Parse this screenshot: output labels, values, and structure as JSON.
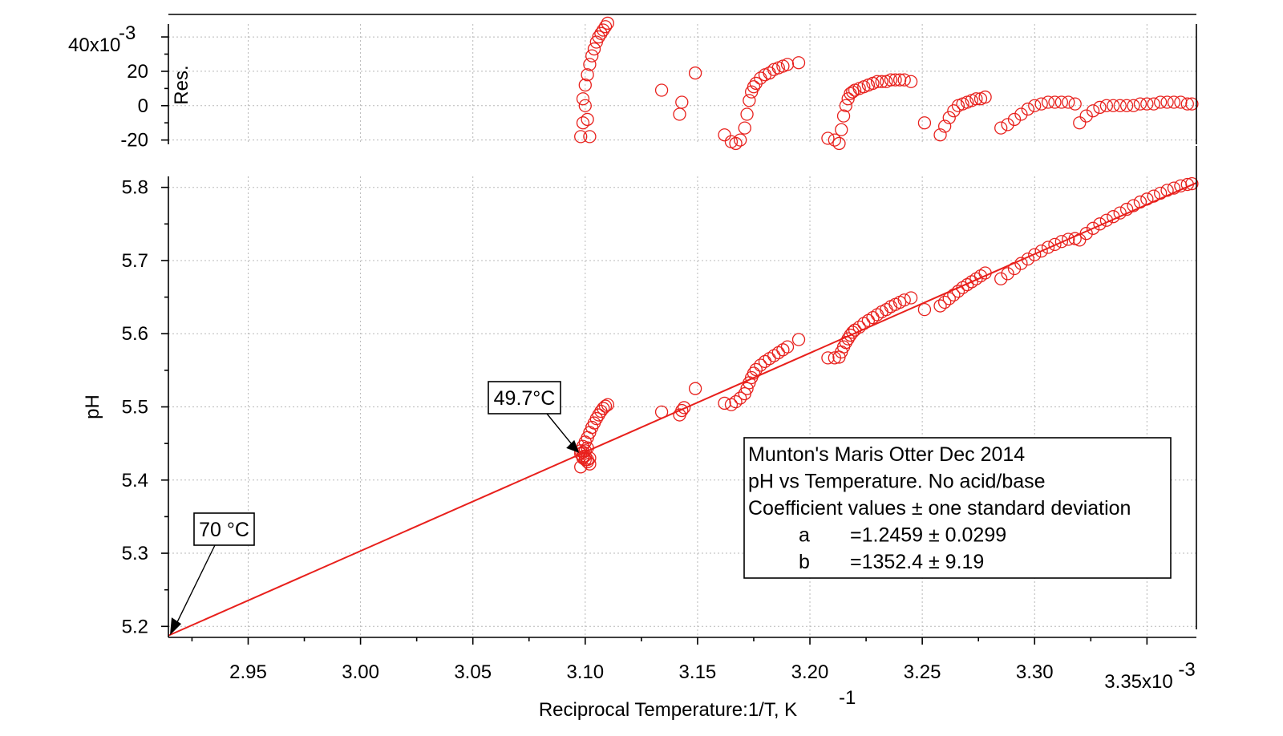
{
  "chart_data": {
    "type": "scatter",
    "xlabel": "Reciprocal Temperature:1/T,  K",
    "xlabel_sup": "-1",
    "x_exponent_label": "3.35x10",
    "x_exponent_sup": "-3",
    "xlim": [
      0.0029145,
      0.003372
    ],
    "x_ticks": [
      0.00295,
      0.003,
      0.00305,
      0.0031,
      0.00315,
      0.0032,
      0.00325,
      0.0033,
      0.00335
    ],
    "x_tick_labels": [
      "2.95",
      "3.00",
      "3.05",
      "3.10",
      "3.15",
      "3.20",
      "3.25",
      "3.30",
      ""
    ],
    "grid": true,
    "panels": [
      {
        "name": "residuals",
        "ylabel": "Res.",
        "ylim": [
          -0.0225,
          0.0475
        ],
        "y_ticks": [
          -0.02,
          0,
          0.02,
          0.04
        ],
        "y_tick_labels": [
          "-20",
          "0",
          "20",
          ""
        ],
        "y_exponent_label": "40x10",
        "y_exponent_sup": "-3"
      },
      {
        "name": "main",
        "ylabel": "pH",
        "ylim": [
          5.185,
          5.815
        ],
        "y_ticks": [
          5.2,
          5.3,
          5.4,
          5.5,
          5.6,
          5.7,
          5.8
        ],
        "y_tick_labels": [
          "5.2",
          "5.3",
          "5.4",
          "5.5",
          "5.6",
          "5.7",
          "5.8"
        ]
      }
    ],
    "fit": {
      "a": 1.2459,
      "b": 1352.4,
      "x_range": [
        0.0029145,
        0.003372
      ]
    },
    "marker_color": "#e8201c",
    "series": [
      {
        "segments": [
          {
            "x": [
              0.003098,
              0.003099,
              0.0031,
              0.003101,
              0.003102,
              0.003101,
              0.0031,
              0.003099,
              0.003098,
              0.003098,
              0.003099,
              0.0031,
              0.003101,
              0.003102
            ],
            "y": [
              5.418,
              5.43,
              5.44,
              5.444,
              5.43,
              5.425,
              5.428,
              5.432,
              5.436,
              5.44,
              5.438,
              5.433,
              5.428,
              5.422
            ]
          },
          {
            "x": [
              0.003099,
              0.0031,
              0.003101,
              0.003102,
              0.003103,
              0.003104,
              0.003105,
              0.003106,
              0.003107,
              0.003108,
              0.003109,
              0.00311
            ],
            "y": [
              5.446,
              5.452,
              5.458,
              5.465,
              5.472,
              5.478,
              5.484,
              5.489,
              5.494,
              5.498,
              5.501,
              5.503
            ]
          },
          {
            "x": [
              0.003134,
              0.003142,
              0.003143,
              0.003144,
              0.003149
            ],
            "y": [
              5.493,
              5.489,
              5.495,
              5.499,
              5.525
            ]
          },
          {
            "x": [
              0.003162,
              0.003165,
              0.003167,
              0.003169,
              0.003171,
              0.003172,
              0.003173,
              0.003174,
              0.003175,
              0.003176,
              0.003178,
              0.00318,
              0.003182,
              0.003184,
              0.003186,
              0.003188,
              0.00319,
              0.003195
            ],
            "y": [
              5.505,
              5.503,
              5.507,
              5.512,
              5.518,
              5.525,
              5.533,
              5.54,
              5.546,
              5.551,
              5.557,
              5.562,
              5.566,
              5.57,
              5.574,
              5.578,
              5.582,
              5.592
            ]
          },
          {
            "x": [
              0.003208,
              0.003211,
              0.003213,
              0.003214,
              0.003215,
              0.003216,
              0.003217,
              0.003218,
              0.003219,
              0.00322,
              0.003222,
              0.003224,
              0.003226,
              0.003228,
              0.00323,
              0.003232,
              0.003234,
              0.003236,
              0.003238,
              0.00324,
              0.003242,
              0.003245
            ],
            "y": [
              5.567,
              5.567,
              5.568,
              5.575,
              5.582,
              5.588,
              5.593,
              5.598,
              5.602,
              5.605,
              5.609,
              5.614,
              5.618,
              5.622,
              5.626,
              5.63,
              5.633,
              5.637,
              5.64,
              5.643,
              5.646,
              5.649
            ]
          },
          {
            "x": [
              0.003251,
              0.003258,
              0.00326,
              0.003262,
              0.003264,
              0.003266,
              0.003268,
              0.00327,
              0.003272,
              0.003274,
              0.003276,
              0.003278
            ],
            "y": [
              5.633,
              5.638,
              5.643,
              5.648,
              5.653,
              5.658,
              5.663,
              5.667,
              5.671,
              5.675,
              5.679,
              5.683
            ]
          },
          {
            "x": [
              0.003285,
              0.003288,
              0.003291,
              0.003294,
              0.003297,
              0.0033,
              0.003303,
              0.003306,
              0.003309,
              0.003312,
              0.003315,
              0.003318
            ],
            "y": [
              5.675,
              5.682,
              5.689,
              5.696,
              5.702,
              5.708,
              5.713,
              5.718,
              5.722,
              5.726,
              5.729,
              5.73
            ]
          },
          {
            "x": [
              0.00332,
              0.003323,
              0.003326,
              0.003329,
              0.003332,
              0.003335,
              0.003338,
              0.003341,
              0.003344,
              0.003347,
              0.00335,
              0.003353,
              0.003356,
              0.003359,
              0.003362,
              0.003365,
              0.003368,
              0.00337
            ],
            "y": [
              5.728,
              5.737,
              5.744,
              5.75,
              5.755,
              5.76,
              5.765,
              5.77,
              5.775,
              5.78,
              5.784,
              5.788,
              5.792,
              5.796,
              5.799,
              5.802,
              5.804,
              5.805
            ]
          }
        ],
        "residuals": {
          "x": [
            0.003098,
            0.003099,
            0.0031,
            0.003101,
            0.003102,
            0.003099,
            0.0031,
            0.003101,
            0.003102,
            0.003103,
            0.003104,
            0.003105,
            0.003106,
            0.003107,
            0.003108,
            0.003109,
            0.00311,
            0.003134,
            0.003142,
            0.003143,
            0.003149,
            0.003162,
            0.003165,
            0.003167,
            0.003169,
            0.003171,
            0.003172,
            0.003173,
            0.003174,
            0.003175,
            0.003176,
            0.003178,
            0.00318,
            0.003182,
            0.003184,
            0.003186,
            0.003188,
            0.00319,
            0.003195,
            0.003208,
            0.003211,
            0.003213,
            0.003214,
            0.003215,
            0.003216,
            0.003217,
            0.003218,
            0.003219,
            0.00322,
            0.003222,
            0.003224,
            0.003226,
            0.003228,
            0.00323,
            0.003232,
            0.003234,
            0.003236,
            0.003238,
            0.00324,
            0.003242,
            0.003245,
            0.003251,
            0.003258,
            0.00326,
            0.003262,
            0.003264,
            0.003266,
            0.003268,
            0.00327,
            0.003272,
            0.003274,
            0.003276,
            0.003278,
            0.003285,
            0.003288,
            0.003291,
            0.003294,
            0.003297,
            0.0033,
            0.003303,
            0.003306,
            0.003309,
            0.003312,
            0.003315,
            0.003318,
            0.00332,
            0.003323,
            0.003326,
            0.003329,
            0.003332,
            0.003335,
            0.003338,
            0.003341,
            0.003344,
            0.003347,
            0.00335,
            0.003353,
            0.003356,
            0.003359,
            0.003362,
            0.003365,
            0.003368,
            0.00337
          ],
          "y": [
            -0.018,
            -0.01,
            0.0,
            -0.008,
            -0.018,
            0.004,
            0.012,
            0.018,
            0.024,
            0.029,
            0.033,
            0.037,
            0.04,
            0.042,
            0.044,
            0.046,
            0.048,
            0.009,
            -0.005,
            0.002,
            0.019,
            -0.017,
            -0.021,
            -0.022,
            -0.02,
            -0.013,
            -0.005,
            0.003,
            0.008,
            0.011,
            0.013,
            0.016,
            0.018,
            0.019,
            0.021,
            0.022,
            0.023,
            0.024,
            0.025,
            -0.019,
            -0.02,
            -0.022,
            -0.014,
            -0.006,
            0.0,
            0.004,
            0.007,
            0.008,
            0.009,
            0.01,
            0.011,
            0.012,
            0.013,
            0.014,
            0.014,
            0.014,
            0.015,
            0.015,
            0.015,
            0.015,
            0.014,
            -0.01,
            -0.017,
            -0.012,
            -0.007,
            -0.003,
            0.0,
            0.001,
            0.002,
            0.003,
            0.004,
            0.004,
            0.005,
            -0.013,
            -0.011,
            -0.008,
            -0.005,
            -0.002,
            0.0,
            0.001,
            0.002,
            0.002,
            0.002,
            0.002,
            0.001,
            -0.01,
            -0.006,
            -0.003,
            -0.001,
            0.0,
            0.0,
            0.0,
            0.0,
            0.0,
            0.001,
            0.001,
            0.001,
            0.002,
            0.002,
            0.002,
            0.002,
            0.001,
            0.001
          ]
        }
      }
    ],
    "annotations": [
      {
        "label": "49.7°C",
        "x": 0.003098,
        "y": 5.435
      },
      {
        "label": "70 °C",
        "x": 0.0029145,
        "y": 5.186
      }
    ],
    "legend": {
      "placement": "bottom-right",
      "lines": [
        "Munton's Maris Otter  Dec 2014",
        "pH vs Temperature. No acid/base",
        "Coefficient values ± one standard deviation"
      ],
      "coefficients": [
        {
          "name": "a",
          "value": "=1.2459 ± 0.0299"
        },
        {
          "name": "b",
          "value": "=1352.4 ± 9.19"
        }
      ]
    }
  }
}
